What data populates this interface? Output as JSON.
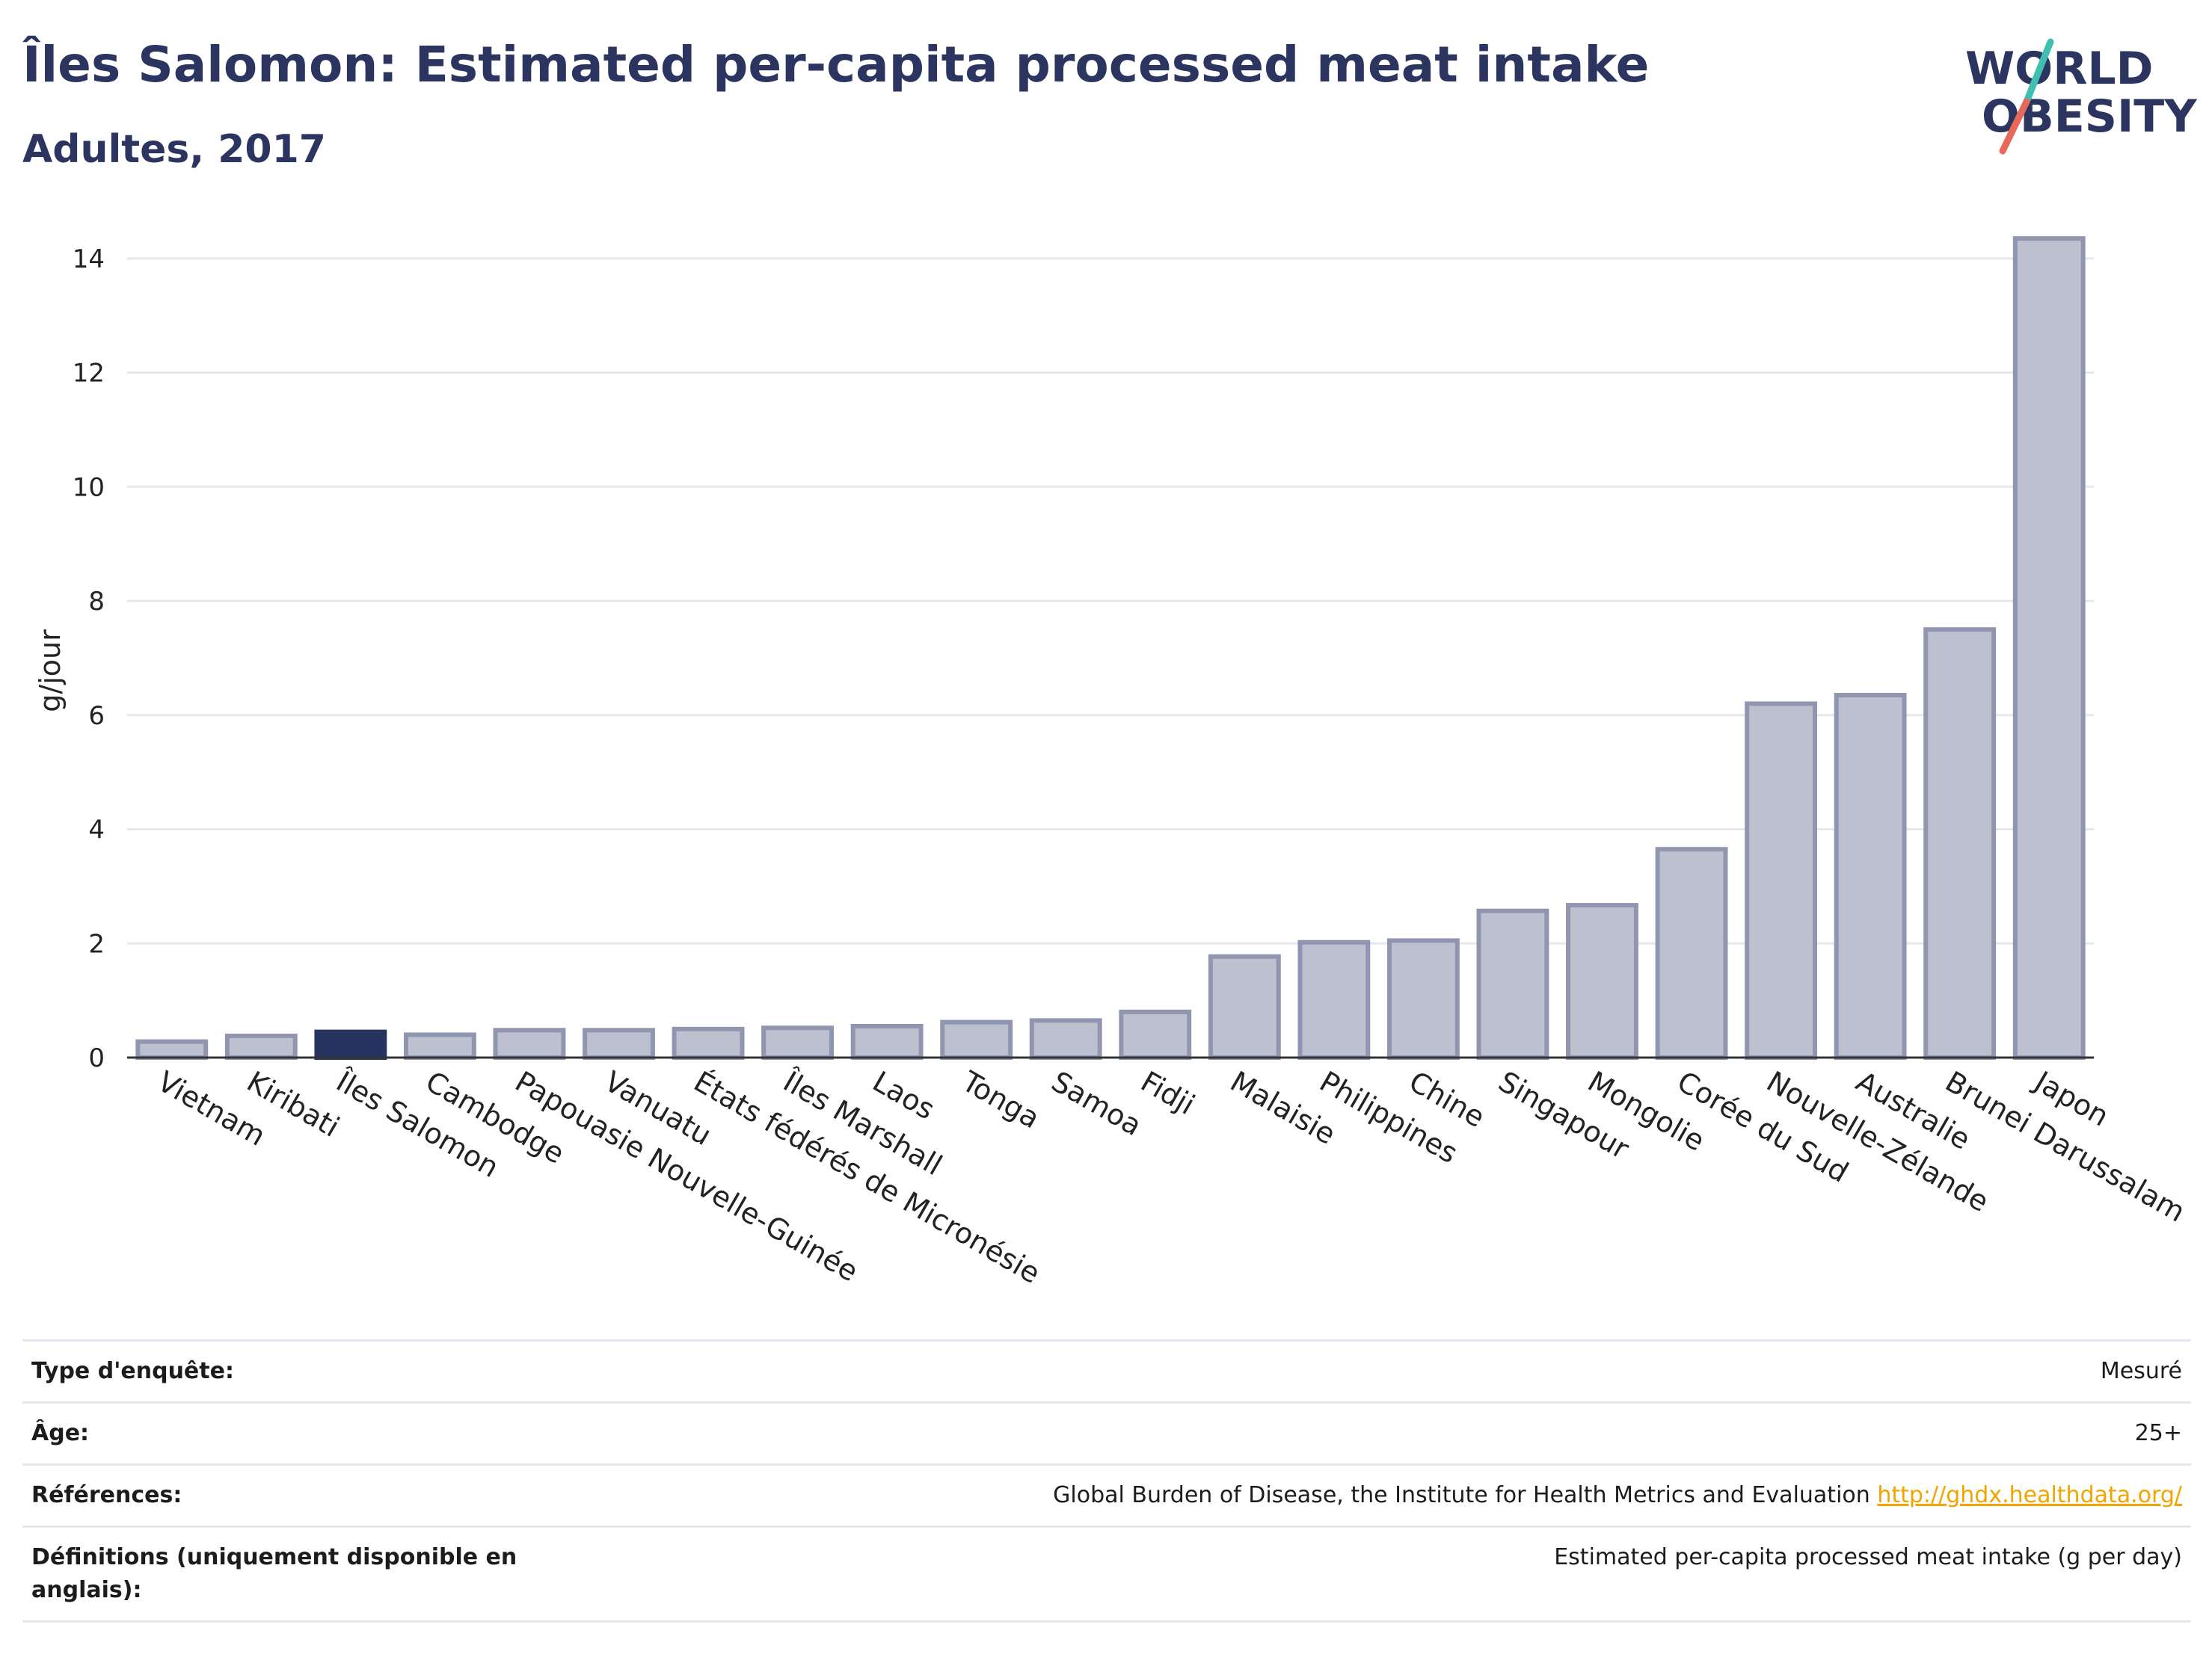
{
  "title": "Îles Salomon: Estimated per-capita processed meat intake",
  "subtitle": "Adultes, 2017",
  "logo": {
    "line1": "WORLD",
    "line2": "OBESITY"
  },
  "colors": {
    "highlight": "#27335f",
    "bar_fill": "#bcc0cf",
    "bar_stroke": "#9196b0",
    "title": "#2b3560",
    "link": "#f0a500"
  },
  "chart_data": {
    "type": "bar",
    "ylabel": "g/jour",
    "ylim": [
      0,
      14.6
    ],
    "yticks": [
      0,
      2,
      4,
      6,
      8,
      10,
      12,
      14
    ],
    "grid": true,
    "highlight": "Îles Salomon",
    "categories": [
      "Vietnam",
      "Kiribati",
      "Îles Salomon",
      "Cambodge",
      "Papouasie Nouvelle-Guinée",
      "Vanuatu",
      "États fédérés de Micronésie",
      "Îles Marshall",
      "Laos",
      "Tonga",
      "Samoa",
      "Fidji",
      "Malaisie",
      "Philippines",
      "Chine",
      "Singapour",
      "Mongolie",
      "Corée du Sud",
      "Nouvelle-Zélande",
      "Australie",
      "Brunei Darussalam",
      "Japon"
    ],
    "values": [
      0.28,
      0.38,
      0.45,
      0.4,
      0.48,
      0.48,
      0.5,
      0.52,
      0.55,
      0.62,
      0.65,
      0.8,
      1.77,
      2.02,
      2.05,
      2.57,
      2.67,
      3.65,
      6.2,
      6.35,
      7.5,
      14.35
    ]
  },
  "info": [
    {
      "key": "Type d'enquête:",
      "value": "Mesuré"
    },
    {
      "key": "Âge:",
      "value": "25+"
    },
    {
      "key": "Références:",
      "value": "Global Burden of Disease, the Institute for Health Metrics and Evaluation",
      "link": "http://ghdx.healthdata.org/"
    },
    {
      "key": "Définitions (uniquement disponible en anglais):",
      "value": "Estimated per-capita processed meat intake (g per day)"
    }
  ]
}
